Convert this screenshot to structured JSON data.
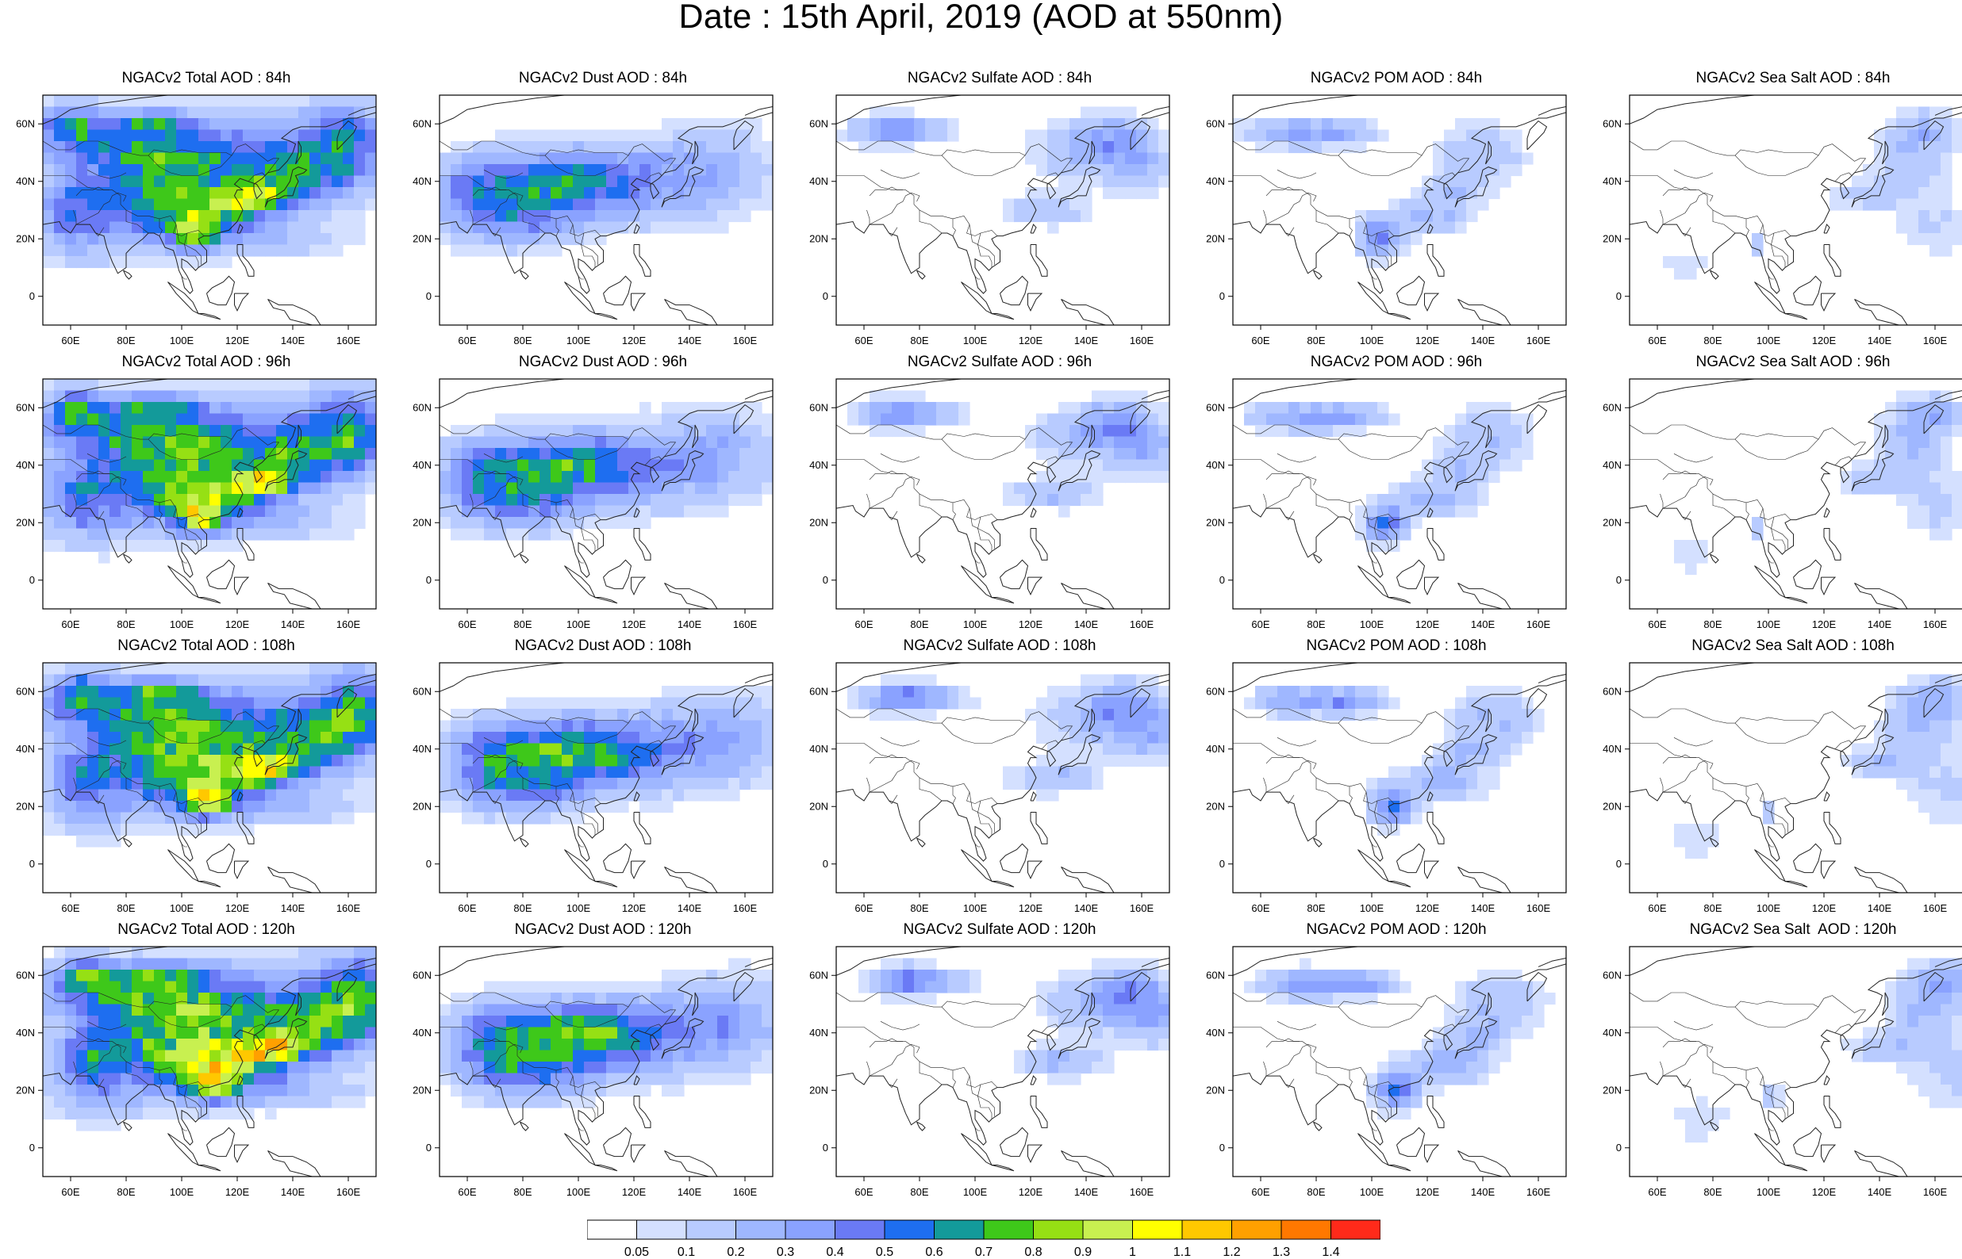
{
  "title": "Date : 15th April, 2019 (AOD at 550nm)",
  "columns": [
    {
      "key": "total",
      "name": "NGACv2 Total AOD"
    },
    {
      "key": "dust",
      "name": "NGACv2 Dust AOD"
    },
    {
      "key": "sulfate",
      "name": "NGACv2 Sulfate AOD"
    },
    {
      "key": "pom",
      "name": "NGACv2 POM AOD"
    },
    {
      "key": "seasalt",
      "name": "NGACv2 Sea Salt AOD"
    }
  ],
  "rows": [
    {
      "forecast_hour": "84h",
      "titles": [
        "NGACv2 Total AOD : 84h",
        "NGACv2 Dust AOD : 84h",
        "NGACv2 Sulfate AOD : 84h",
        "NGACv2 POM AOD : 84h",
        "NGACv2 Sea Salt AOD : 84h"
      ]
    },
    {
      "forecast_hour": "96h",
      "titles": [
        "NGACv2 Total AOD : 96h",
        "NGACv2 Dust AOD : 96h",
        "NGACv2 Sulfate AOD : 96h",
        "NGACv2 POM AOD : 96h",
        "NGACv2 Sea Salt AOD : 96h"
      ]
    },
    {
      "forecast_hour": "108h",
      "titles": [
        "NGACv2 Total AOD : 108h",
        "NGACv2 Dust AOD : 108h",
        "NGACv2 Sulfate AOD : 108h",
        "NGACv2 POM AOD : 108h",
        "NGACv2 Sea Salt AOD : 108h"
      ]
    },
    {
      "forecast_hour": "120h",
      "titles": [
        "NGACv2 Total AOD : 120h",
        "NGACv2 Dust AOD : 120h",
        "NGACv2 Sulfate AOD : 120h",
        "NGACv2 POM AOD : 120h",
        "NGACv2 Sea Salt  AOD : 120h"
      ]
    }
  ],
  "map": {
    "lon_range": [
      50,
      170
    ],
    "lat_range": [
      -10,
      70
    ],
    "lon_tick_labels": [
      "60E",
      "80E",
      "100E",
      "120E",
      "140E",
      "160E"
    ],
    "lon_tick_values": [
      60,
      80,
      100,
      120,
      140,
      160
    ],
    "lat_tick_labels": [
      "60N",
      "40N",
      "20N",
      "0"
    ],
    "lat_tick_values": [
      60,
      40,
      20,
      0
    ]
  },
  "colorbar": {
    "levels": [
      "0.05",
      "0.1",
      "0.2",
      "0.3",
      "0.4",
      "0.5",
      "0.6",
      "0.7",
      "0.8",
      "0.9",
      "1",
      "1.1",
      "1.2",
      "1.3",
      "1.4"
    ],
    "colors": [
      "#ffffff",
      "#d4e0ff",
      "#b8cbff",
      "#9fb7ff",
      "#8aa2ff",
      "#6a7af5",
      "#1e6ef0",
      "#139a9a",
      "#3ec81a",
      "#96e014",
      "#c8f050",
      "#ffff00",
      "#ffc800",
      "#ffa000",
      "#ff7800",
      "#ff2a1a"
    ]
  },
  "region_colors": {
    "land_outline": "#222222",
    "frame": "#000000"
  }
}
